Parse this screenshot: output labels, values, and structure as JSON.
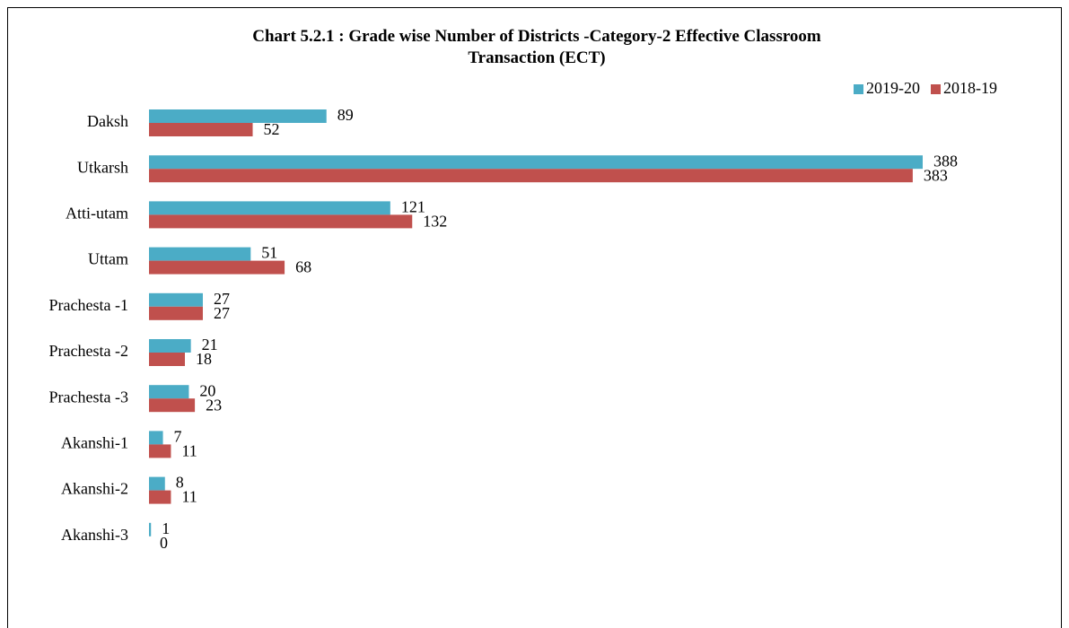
{
  "chart_data": {
    "type": "bar",
    "orientation": "horizontal",
    "title": "Chart 5.2.1 : Grade wise Number of Districts -Category-2 Effective Classroom Transaction (ECT)",
    "categories": [
      "Daksh",
      "Utkarsh",
      "Atti-utam",
      "Uttam",
      "Prachesta -1",
      "Prachesta -2",
      "Prachesta -3",
      "Akanshi-1",
      "Akanshi-2",
      "Akanshi-3"
    ],
    "series": [
      {
        "name": "2019-20",
        "color": "#4bacc6",
        "values": [
          89,
          388,
          121,
          51,
          27,
          21,
          20,
          7,
          8,
          1
        ]
      },
      {
        "name": "2018-19",
        "color": "#c0504d",
        "values": [
          52,
          383,
          132,
          68,
          27,
          18,
          23,
          11,
          11,
          0
        ]
      }
    ],
    "legend": "top-right"
  }
}
